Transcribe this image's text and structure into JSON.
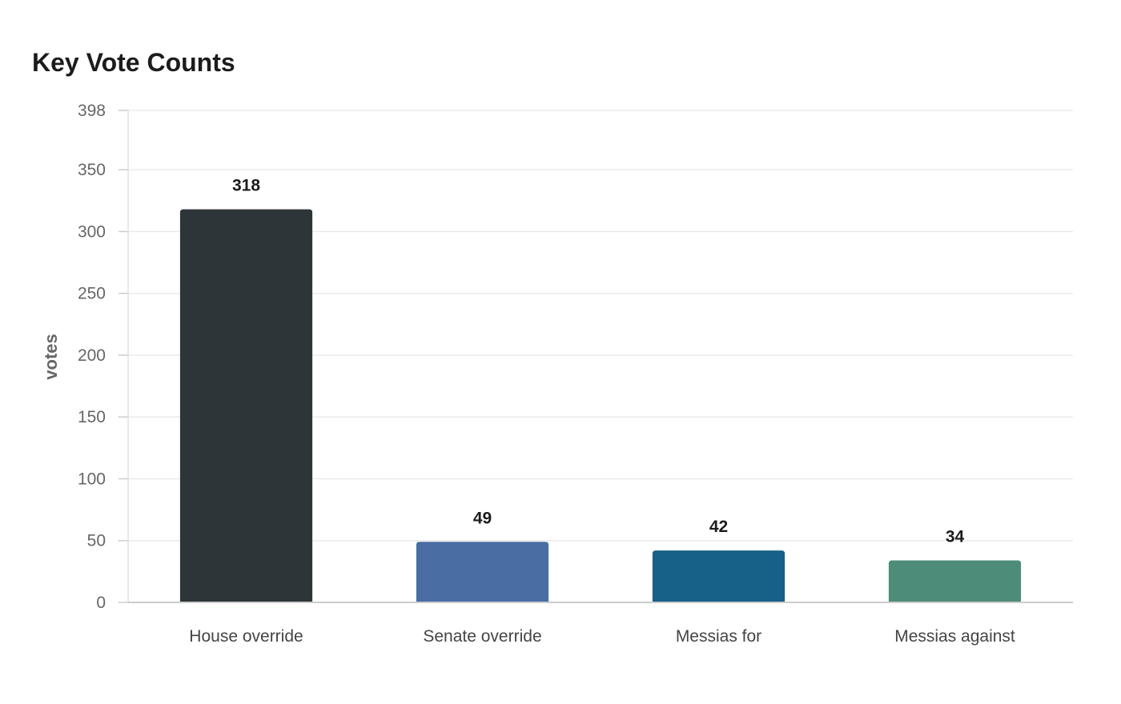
{
  "chart_data": {
    "type": "bar",
    "title": "Key Vote Counts",
    "xlabel": "",
    "ylabel": "votes",
    "categories": [
      "House override",
      "Senate override",
      "Messias for",
      "Messias against"
    ],
    "values": [
      318,
      49,
      42,
      34
    ],
    "colors": [
      "#2e3538",
      "#4a6ea3",
      "#176087",
      "#4e8c7a"
    ],
    "ylim": [
      0,
      398
    ],
    "yticks": [
      0,
      50,
      100,
      150,
      200,
      250,
      300,
      350,
      398
    ],
    "grid": true,
    "legend": "none"
  }
}
